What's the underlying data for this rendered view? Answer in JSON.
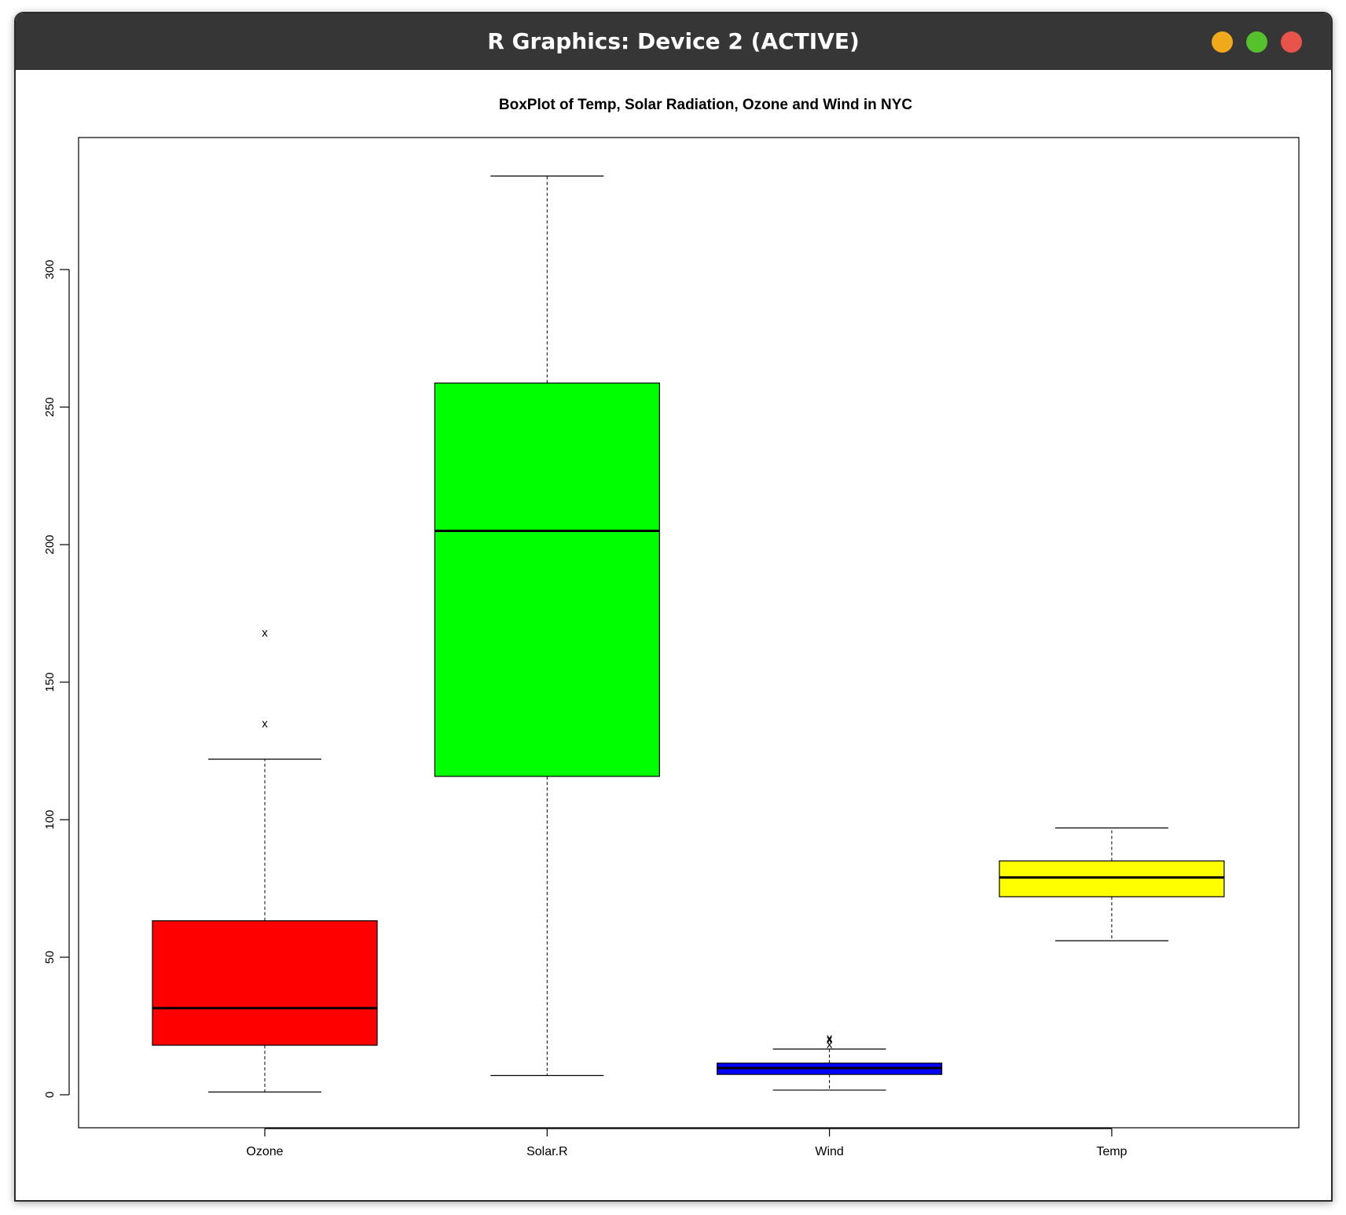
{
  "window": {
    "title": "R Graphics: Device 2 (ACTIVE)"
  },
  "chart_data": {
    "type": "box",
    "title": "BoxPlot of Temp, Solar Radiation, Ozone and Wind in NYC",
    "xlabel": "",
    "ylabel": "",
    "ylim": [
      -12,
      348
    ],
    "yticks": [
      0,
      50,
      100,
      150,
      200,
      250,
      300
    ],
    "categories": [
      "Ozone",
      "Solar.R",
      "Wind",
      "Temp"
    ],
    "boxes": [
      {
        "category": "Ozone",
        "color": "#ff0000",
        "min": 1,
        "q1": 18,
        "median": 31.5,
        "q3": 63.25,
        "max": 122,
        "outliers": [
          135,
          168
        ]
      },
      {
        "category": "Solar.R",
        "color": "#00ff00",
        "min": 7,
        "q1": 115.75,
        "median": 205,
        "q3": 258.75,
        "max": 334,
        "outliers": []
      },
      {
        "category": "Wind",
        "color": "#0000ff",
        "min": 1.7,
        "q1": 7.4,
        "median": 9.7,
        "q3": 11.5,
        "max": 16.6,
        "outliers": [
          18.4,
          20.1,
          20.7
        ]
      },
      {
        "category": "Temp",
        "color": "#ffff00",
        "min": 56,
        "q1": 72,
        "median": 79,
        "q3": 85,
        "max": 97,
        "outliers": []
      }
    ],
    "outlier_symbol": "x",
    "grid": false,
    "legend": "none"
  }
}
